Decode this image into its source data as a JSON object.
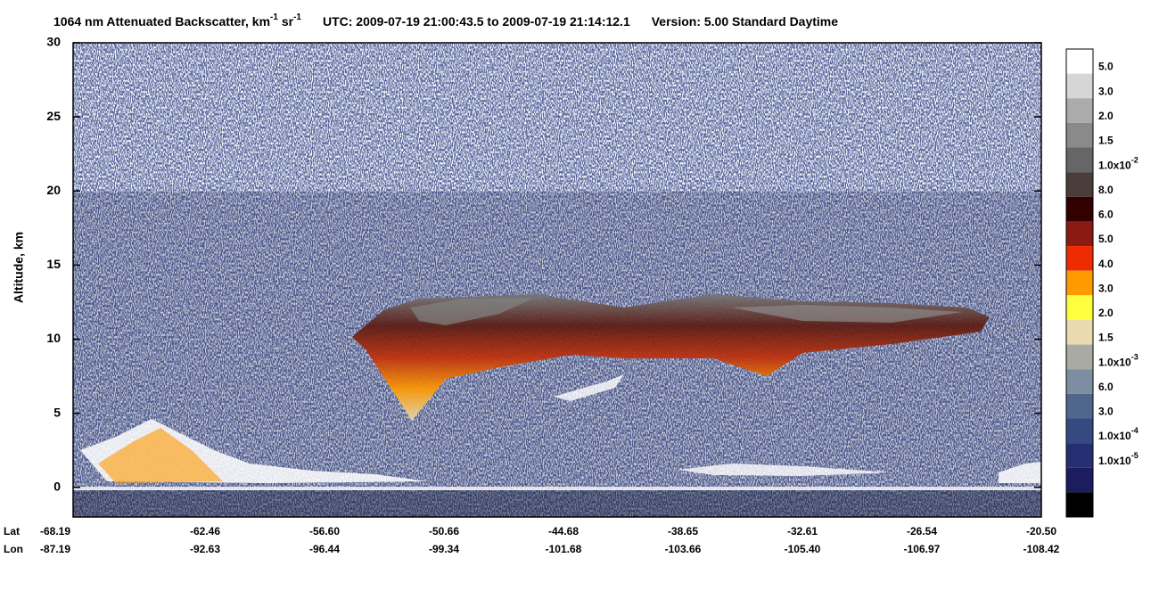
{
  "chart_data": {
    "type": "lidar-curtain",
    "title": [
      {
        "text": "1064 nm Attenuated Backscatter, km"
      },
      {
        "sup": "-1"
      },
      {
        "text": " sr"
      },
      {
        "sup": "-1"
      },
      {
        "text": "UTC:  2009-07-19 21:00:43.5  to  2009-07-19 21:14:12.1"
      },
      {
        "text": "Version: 5.00  Standard  Daytime"
      }
    ],
    "y_label": "Altitude, km",
    "ylim": [
      -2,
      30
    ],
    "yticks": [
      0,
      5,
      10,
      15,
      20,
      25,
      30
    ],
    "x_rows": [
      {
        "name": "Lat",
        "labels": [
          "-68.19",
          "-62.46",
          "-56.60",
          "-50.66",
          "-44.68",
          "-38.65",
          "-32.61",
          "-26.54",
          "-20.50"
        ]
      },
      {
        "name": "Lon",
        "labels": [
          "-87.19",
          "-92.63",
          "-96.44",
          "-99.34",
          "-101.68",
          "-103.66",
          "-105.40",
          "-106.97",
          "-108.42"
        ]
      }
    ],
    "colorbar": {
      "colors": [
        "#ffffff",
        "#d6d6d6",
        "#ababab",
        "#8a8a8a",
        "#666666",
        "#4a3e3c",
        "#330000",
        "#8a1a12",
        "#ee2a00",
        "#ff9a00",
        "#ffff40",
        "#e9dab0",
        "#a9aaa2",
        "#7d8ea2",
        "#50678c",
        "#344a80",
        "#262e72",
        "#1c1c60",
        "#000000"
      ],
      "labels": [
        {
          "text": "5.0"
        },
        {
          "text": "3.0"
        },
        {
          "text": "2.0"
        },
        {
          "text": "1.5"
        },
        {
          "text": "1.0x10",
          "sup": "-2"
        },
        {
          "text": "8.0"
        },
        {
          "text": "6.0"
        },
        {
          "text": "5.0"
        },
        {
          "text": "4.0"
        },
        {
          "text": "3.0"
        },
        {
          "text": "2.0"
        },
        {
          "text": "1.5"
        },
        {
          "text": "1.0x10",
          "sup": "-3"
        },
        {
          "text": "6.0"
        },
        {
          "text": "3.0"
        },
        {
          "text": "1.0x10",
          "sup": "-4"
        },
        {
          "text": "1.0x10",
          "sup": "-5"
        }
      ]
    }
  }
}
